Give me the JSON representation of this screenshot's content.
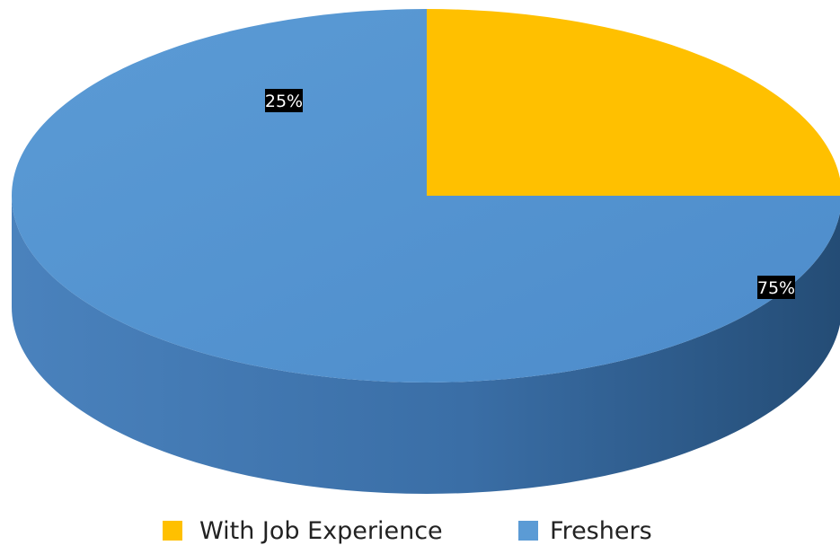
{
  "chart_data": {
    "type": "pie",
    "style": "3d",
    "slices": [
      {
        "name": "With Job Experience",
        "value": 25,
        "label": "25%",
        "color": "#ffc000"
      },
      {
        "name": "Freshers",
        "value": 75,
        "label": "75%",
        "color": "#5b9bd5"
      }
    ],
    "legend_position": "bottom",
    "colors": {
      "freshers_top": "#5b9bd5",
      "freshers_side_dark": "#2e5f8f",
      "freshers_side_light": "#4a82bd",
      "experience_top": "#ffc000",
      "label_background": "#000000",
      "label_text": "#ffffff"
    }
  }
}
